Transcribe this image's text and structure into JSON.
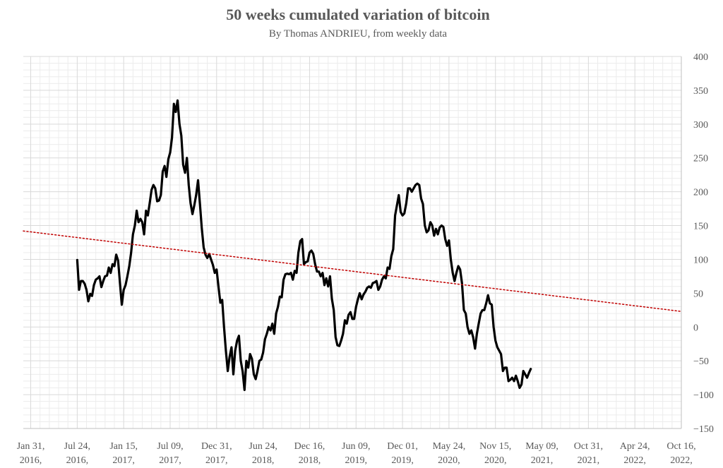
{
  "chart_data": {
    "type": "line",
    "title": "50 weeks cumulated variation of bitcoin",
    "subtitle": "By Thomas ANDRIEU, from weekly data",
    "xlabel": "",
    "ylabel": "",
    "ylim": [
      -150,
      400
    ],
    "y_ticks": [
      400,
      350,
      300,
      250,
      200,
      150,
      100,
      50,
      0,
      -50,
      -100,
      -150
    ],
    "y_tick_labels": [
      "400",
      "350",
      "300",
      "250",
      "200",
      "150",
      "100",
      "50",
      "0",
      "−50",
      "−100",
      "−150"
    ],
    "x_tick_labels": [
      [
        "Jan 31,",
        "2016,"
      ],
      [
        "Jul 24,",
        "2016,"
      ],
      [
        "Jan 15,",
        "2017,"
      ],
      [
        "Jul 09,",
        "2017,"
      ],
      [
        "Dec 31,",
        "2017,"
      ],
      [
        "Jun 24,",
        "2018,"
      ],
      [
        "Dec 16,",
        "2018,"
      ],
      [
        "Jun 09,",
        "2019,"
      ],
      [
        "Dec 01,",
        "2019,"
      ],
      [
        "May 24,",
        "2020,"
      ],
      [
        "Nov 15,",
        "2020,"
      ],
      [
        "May 09,",
        "2021,"
      ],
      [
        "Oct 31,",
        "2021,"
      ],
      [
        "Apr 24,",
        "2022,"
      ],
      [
        "Oct 16,",
        "2022,"
      ]
    ],
    "x_range_weeks": [
      -4,
      350
    ],
    "x_tick_positions_weeks": [
      0,
      25,
      50,
      75,
      100,
      125,
      150,
      175,
      200,
      225,
      250,
      275,
      300,
      325,
      350
    ],
    "grid": true,
    "legend": "none",
    "series": [
      {
        "style": "solid",
        "color": "#000000",
        "points": [
          [
            25,
            99
          ],
          [
            26,
            55
          ],
          [
            27,
            68
          ],
          [
            28,
            68
          ],
          [
            29,
            64
          ],
          [
            30,
            55
          ],
          [
            31,
            38
          ],
          [
            32,
            49
          ],
          [
            33,
            46
          ],
          [
            34,
            62
          ],
          [
            35,
            70
          ],
          [
            36,
            72
          ],
          [
            37,
            75
          ],
          [
            38,
            59
          ],
          [
            39,
            68
          ],
          [
            40,
            75
          ],
          [
            41,
            76
          ],
          [
            42,
            88
          ],
          [
            43,
            80
          ],
          [
            44,
            93
          ],
          [
            45,
            90
          ],
          [
            46,
            107
          ],
          [
            47,
            98
          ],
          [
            48,
            65
          ],
          [
            49,
            33
          ],
          [
            50,
            55
          ],
          [
            51,
            62
          ],
          [
            52,
            75
          ],
          [
            53,
            90
          ],
          [
            54,
            110
          ],
          [
            55,
            137
          ],
          [
            56,
            150
          ],
          [
            57,
            172
          ],
          [
            58,
            155
          ],
          [
            59,
            160
          ],
          [
            60,
            155
          ],
          [
            61,
            137
          ],
          [
            62,
            172
          ],
          [
            63,
            165
          ],
          [
            64,
            183
          ],
          [
            65,
            203
          ],
          [
            66,
            210
          ],
          [
            67,
            205
          ],
          [
            68,
            186
          ],
          [
            69,
            187
          ],
          [
            70,
            195
          ],
          [
            71,
            230
          ],
          [
            72,
            238
          ],
          [
            73,
            222
          ],
          [
            74,
            248
          ],
          [
            75,
            258
          ],
          [
            76,
            280
          ],
          [
            77,
            330
          ],
          [
            78,
            318
          ],
          [
            79,
            335
          ],
          [
            80,
            300
          ],
          [
            81,
            283
          ],
          [
            82,
            240
          ],
          [
            83,
            228
          ],
          [
            84,
            250
          ],
          [
            85,
            210
          ],
          [
            86,
            183
          ],
          [
            87,
            167
          ],
          [
            88,
            180
          ],
          [
            89,
            195
          ],
          [
            90,
            217
          ],
          [
            91,
            183
          ],
          [
            92,
            147
          ],
          [
            93,
            118
          ],
          [
            94,
            107
          ],
          [
            95,
            102
          ],
          [
            96,
            108
          ],
          [
            97,
            100
          ],
          [
            98,
            92
          ],
          [
            99,
            80
          ],
          [
            100,
            85
          ],
          [
            101,
            60
          ],
          [
            102,
            36
          ],
          [
            103,
            40
          ],
          [
            104,
            0
          ],
          [
            105,
            -36
          ],
          [
            106,
            -65
          ],
          [
            107,
            -44
          ],
          [
            108,
            -30
          ],
          [
            109,
            -70
          ],
          [
            110,
            -35
          ],
          [
            111,
            -20
          ],
          [
            112,
            -13
          ],
          [
            113,
            -50
          ],
          [
            114,
            -66
          ],
          [
            115,
            -93
          ],
          [
            116,
            -50
          ],
          [
            117,
            -60
          ],
          [
            118,
            -40
          ],
          [
            119,
            -47
          ],
          [
            120,
            -70
          ],
          [
            121,
            -77
          ],
          [
            122,
            -65
          ],
          [
            123,
            -50
          ],
          [
            124,
            -48
          ],
          [
            125,
            -38
          ],
          [
            126,
            -18
          ],
          [
            127,
            -10
          ],
          [
            128,
            0
          ],
          [
            129,
            -5
          ],
          [
            130,
            5
          ],
          [
            131,
            -10
          ],
          [
            132,
            20
          ],
          [
            133,
            30
          ],
          [
            134,
            45
          ],
          [
            135,
            44
          ],
          [
            136,
            70
          ],
          [
            137,
            78
          ],
          [
            138,
            79
          ],
          [
            139,
            78
          ],
          [
            140,
            80
          ],
          [
            141,
            70
          ],
          [
            142,
            83
          ],
          [
            143,
            80
          ],
          [
            144,
            110
          ],
          [
            145,
            127
          ],
          [
            146,
            130
          ],
          [
            147,
            93
          ],
          [
            148,
            96
          ],
          [
            149,
            97
          ],
          [
            150,
            110
          ],
          [
            151,
            113
          ],
          [
            152,
            108
          ],
          [
            153,
            93
          ],
          [
            154,
            82
          ],
          [
            155,
            82
          ],
          [
            156,
            75
          ],
          [
            157,
            80
          ],
          [
            158,
            62
          ],
          [
            159,
            72
          ],
          [
            160,
            60
          ],
          [
            161,
            75
          ],
          [
            162,
            42
          ],
          [
            163,
            25
          ],
          [
            164,
            -15
          ],
          [
            165,
            -27
          ],
          [
            166,
            -28
          ],
          [
            167,
            -20
          ],
          [
            168,
            -10
          ],
          [
            169,
            10
          ],
          [
            170,
            5
          ],
          [
            171,
            18
          ],
          [
            172,
            22
          ],
          [
            173,
            12
          ],
          [
            174,
            12
          ],
          [
            175,
            30
          ],
          [
            176,
            41
          ],
          [
            177,
            50
          ],
          [
            178,
            41
          ],
          [
            179,
            48
          ],
          [
            180,
            52
          ],
          [
            181,
            58
          ],
          [
            182,
            60
          ],
          [
            183,
            58
          ],
          [
            184,
            65
          ],
          [
            185,
            66
          ],
          [
            186,
            68
          ],
          [
            187,
            55
          ],
          [
            188,
            60
          ],
          [
            189,
            70
          ],
          [
            190,
            75
          ],
          [
            191,
            72
          ],
          [
            192,
            88
          ],
          [
            193,
            86
          ],
          [
            194,
            105
          ],
          [
            195,
            115
          ],
          [
            196,
            165
          ],
          [
            197,
            180
          ],
          [
            198,
            195
          ],
          [
            199,
            170
          ],
          [
            200,
            165
          ],
          [
            201,
            168
          ],
          [
            202,
            183
          ],
          [
            203,
            205
          ],
          [
            204,
            205
          ],
          [
            205,
            200
          ],
          [
            206,
            205
          ],
          [
            207,
            210
          ],
          [
            208,
            212
          ],
          [
            209,
            210
          ],
          [
            210,
            190
          ],
          [
            211,
            182
          ],
          [
            212,
            150
          ],
          [
            213,
            140
          ],
          [
            214,
            143
          ],
          [
            215,
            155
          ],
          [
            216,
            150
          ],
          [
            217,
            135
          ],
          [
            218,
            145
          ],
          [
            219,
            137
          ],
          [
            220,
            147
          ],
          [
            221,
            150
          ],
          [
            222,
            148
          ],
          [
            223,
            130
          ],
          [
            224,
            120
          ],
          [
            225,
            128
          ],
          [
            226,
            100
          ],
          [
            227,
            80
          ],
          [
            228,
            68
          ],
          [
            229,
            80
          ],
          [
            230,
            90
          ],
          [
            231,
            85
          ],
          [
            232,
            65
          ],
          [
            233,
            25
          ],
          [
            234,
            20
          ],
          [
            235,
            0
          ],
          [
            236,
            -10
          ],
          [
            237,
            -5
          ],
          [
            238,
            -15
          ],
          [
            239,
            -32
          ],
          [
            240,
            -10
          ],
          [
            241,
            5
          ],
          [
            242,
            20
          ],
          [
            243,
            25
          ],
          [
            244,
            25
          ],
          [
            245,
            35
          ],
          [
            246,
            47
          ],
          [
            247,
            35
          ],
          [
            248,
            33
          ],
          [
            249,
            0
          ],
          [
            250,
            -20
          ],
          [
            251,
            -30
          ],
          [
            252,
            -35
          ],
          [
            253,
            -40
          ],
          [
            254,
            -65
          ],
          [
            255,
            -60
          ],
          [
            256,
            -60
          ],
          [
            257,
            -80
          ],
          [
            258,
            -78
          ],
          [
            259,
            -75
          ],
          [
            260,
            -80
          ],
          [
            261,
            -72
          ],
          [
            262,
            -80
          ],
          [
            263,
            -90
          ],
          [
            264,
            -85
          ],
          [
            265,
            -65
          ],
          [
            266,
            -70
          ],
          [
            267,
            -75
          ],
          [
            268,
            -68
          ],
          [
            269,
            -62
          ]
        ]
      },
      {
        "style": "dotted",
        "color": "#c00000",
        "points": [
          [
            -4,
            142
          ],
          [
            350,
            23
          ]
        ]
      }
    ]
  }
}
